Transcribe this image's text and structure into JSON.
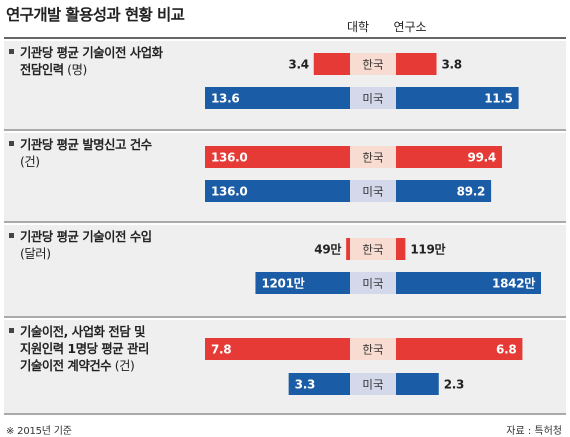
{
  "header": {
    "title": "연구개발 활용성과 현황 비교",
    "col_left": "대학",
    "col_right": "연구소"
  },
  "chart_data": {
    "type": "bar",
    "subtype": "diverging-paired",
    "series_names": [
      "대학",
      "연구소"
    ],
    "groups": [
      {
        "label_lines": [
          "기관당 평균 기술이전 사업화",
          "전담인력"
        ],
        "unit": "(명)",
        "rows": [
          {
            "country": "한국",
            "left": 3.4,
            "right": 3.8,
            "left_label": "3.4",
            "right_label": "3.8"
          },
          {
            "country": "미국",
            "left": 13.6,
            "right": 11.5,
            "left_label": "13.6",
            "right_label": "11.5"
          }
        ]
      },
      {
        "label_lines": [
          "기관당 평균 발명신고 건수",
          ""
        ],
        "unit": "(건)",
        "rows": [
          {
            "country": "한국",
            "left": 136.0,
            "right": 99.4,
            "left_label": "136.0",
            "right_label": "99.4"
          },
          {
            "country": "미국",
            "left": 136.0,
            "right": 89.2,
            "left_label": "136.0",
            "right_label": "89.2"
          }
        ]
      },
      {
        "label_lines": [
          "기관당 평균 기술이전 수입",
          ""
        ],
        "unit": "(달러)",
        "rows": [
          {
            "country": "한국",
            "left": 49,
            "right": 119,
            "left_label": "49만",
            "right_label": "119만"
          },
          {
            "country": "미국",
            "left": 1201,
            "right": 1842,
            "left_label": "1201만",
            "right_label": "1842만"
          }
        ]
      },
      {
        "label_lines": [
          "기술이전, 사업화 전담 및",
          "지원인력 1명당 평균 관리",
          "기술이전 계약건수"
        ],
        "unit": "(건)",
        "rows": [
          {
            "country": "한국",
            "left": 7.8,
            "right": 6.8,
            "left_label": "7.8",
            "right_label": "6.8"
          },
          {
            "country": "미국",
            "left": 3.3,
            "right": 2.3,
            "left_label": "3.3",
            "right_label": "2.3"
          }
        ]
      }
    ]
  },
  "colors": {
    "korea_bar": "#e63a36",
    "usa_bar": "#1a5ca6",
    "korea_center": "#f8dcd2",
    "usa_center": "#d3d9ea",
    "group_bg": "#efefef",
    "divider": "#333333"
  },
  "footer": {
    "note": "※ 2015년 기준",
    "source": "자료 : 특허청"
  }
}
